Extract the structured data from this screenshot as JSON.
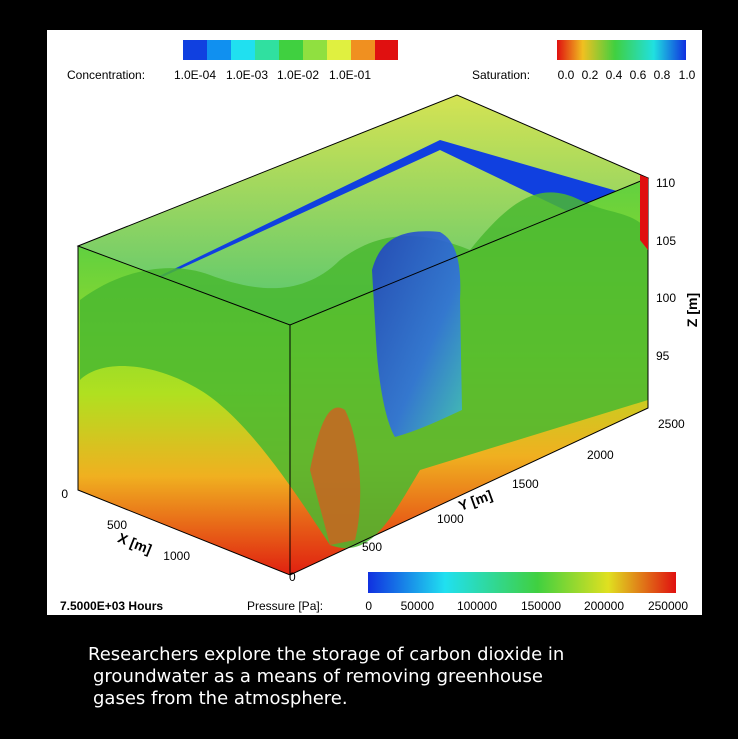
{
  "legends": {
    "concentration": {
      "label": "Concentration:",
      "ticks": [
        "1.0E-04",
        "1.0E-03",
        "1.0E-02",
        "1.0E-01"
      ]
    },
    "saturation": {
      "label": "Saturation:",
      "ticks": [
        "0.0",
        "0.2",
        "0.4",
        "0.6",
        "0.8",
        "1.0"
      ]
    },
    "pressure": {
      "label": "Pressure [Pa]:",
      "ticks": [
        "0",
        "50000",
        "100000",
        "150000",
        "200000",
        "250000"
      ]
    }
  },
  "axes": {
    "z": {
      "title": "Z [m]",
      "ticks": [
        "110",
        "105",
        "100",
        "95"
      ]
    },
    "y": {
      "title": "Y [m]",
      "ticks": [
        "0",
        "500",
        "1000",
        "1500",
        "2000",
        "2500"
      ]
    },
    "x": {
      "title": "X [m]",
      "ticks": [
        "0",
        "500",
        "1000"
      ]
    }
  },
  "time_label": "7.5000E+03 Hours",
  "caption": [
    "Researchers explore the storage of carbon dioxide in",
    "groundwater as a means of removing greenhouse",
    "gases from the atmosphere."
  ]
}
